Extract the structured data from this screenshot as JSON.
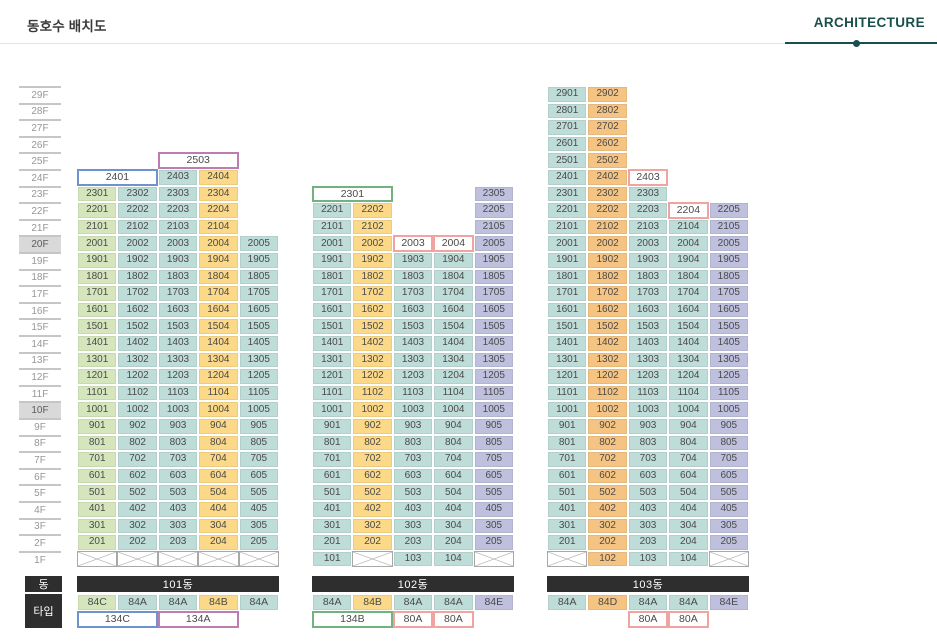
{
  "header": {
    "title": "동호수 배치도",
    "brand": "ARCHITECTURE"
  },
  "legend": {
    "dong_label": "동",
    "type_label": "타입"
  },
  "floor_axis": {
    "labels": [
      "29F",
      "28F",
      "27F",
      "26F",
      "25F",
      "24F",
      "23F",
      "22F",
      "21F",
      "20F",
      "19F",
      "18F",
      "17F",
      "16F",
      "15F",
      "14F",
      "13F",
      "12F",
      "11F",
      "10F",
      "9F",
      "8F",
      "7F",
      "6F",
      "5F",
      "4F",
      "3F",
      "2F",
      "1F"
    ],
    "highlighted": [
      "20F",
      "10F"
    ]
  },
  "colors": {
    "green": "#d5e6bd",
    "teal": "#bedcd8",
    "yellow": "#fbd988",
    "orange": "#f5c483",
    "purple": "#bfc0dd",
    "outline_blue": "#6e92cc",
    "outline_purple": "#bc7db0",
    "outline_green": "#72b27e",
    "outline_pink": "#f0a3a0",
    "accent_teal": "#1b4f4c",
    "header_black": "#2e2e2e",
    "floor_highlight": "#d9d9d9"
  },
  "buildings": [
    {
      "name": "101동",
      "col_styles": [
        "green",
        "teal",
        "teal",
        "yellow",
        "teal"
      ],
      "floors": [
        {
          "f": 25,
          "cells": [
            {
              "c": 3,
              "span": 2,
              "t": "2503",
              "style": "outline-purple"
            }
          ]
        },
        {
          "f": 24,
          "cells": [
            {
              "c": 1,
              "span": 2,
              "t": "2401",
              "style": "outline-blue"
            },
            {
              "c": 3,
              "t": "2403"
            },
            {
              "c": 4,
              "t": "2404"
            }
          ]
        },
        {
          "f": 23,
          "cells": [
            "2301",
            "2302",
            "2303",
            "2304"
          ]
        },
        {
          "f": 22,
          "cells": [
            "2201",
            "2202",
            "2203",
            "2204"
          ]
        },
        {
          "f": 21,
          "cells": [
            "2101",
            "2102",
            "2103",
            "2104"
          ]
        },
        {
          "f": 20,
          "cells": [
            "2001",
            "2002",
            "2003",
            "2004",
            "2005"
          ]
        },
        {
          "f": 19,
          "cells": [
            "1901",
            "1902",
            "1903",
            "1904",
            "1905"
          ]
        },
        {
          "f": 18,
          "cells": [
            "1801",
            "1802",
            "1803",
            "1804",
            "1805"
          ]
        },
        {
          "f": 17,
          "cells": [
            "1701",
            "1702",
            "1703",
            "1704",
            "1705"
          ]
        },
        {
          "f": 16,
          "cells": [
            "1601",
            "1602",
            "1603",
            "1604",
            "1605"
          ]
        },
        {
          "f": 15,
          "cells": [
            "1501",
            "1502",
            "1503",
            "1504",
            "1505"
          ]
        },
        {
          "f": 14,
          "cells": [
            "1401",
            "1402",
            "1403",
            "1404",
            "1405"
          ]
        },
        {
          "f": 13,
          "cells": [
            "1301",
            "1302",
            "1303",
            "1304",
            "1305"
          ]
        },
        {
          "f": 12,
          "cells": [
            "1201",
            "1202",
            "1203",
            "1204",
            "1205"
          ]
        },
        {
          "f": 11,
          "cells": [
            "1101",
            "1102",
            "1103",
            "1104",
            "1105"
          ]
        },
        {
          "f": 10,
          "cells": [
            "1001",
            "1002",
            "1003",
            "1004",
            "1005"
          ]
        },
        {
          "f": 9,
          "cells": [
            "901",
            "902",
            "903",
            "904",
            "905"
          ]
        },
        {
          "f": 8,
          "cells": [
            "801",
            "802",
            "803",
            "804",
            "805"
          ]
        },
        {
          "f": 7,
          "cells": [
            "701",
            "702",
            "703",
            "704",
            "705"
          ]
        },
        {
          "f": 6,
          "cells": [
            "601",
            "602",
            "603",
            "604",
            "605"
          ]
        },
        {
          "f": 5,
          "cells": [
            "501",
            "502",
            "503",
            "504",
            "505"
          ]
        },
        {
          "f": 4,
          "cells": [
            "401",
            "402",
            "403",
            "404",
            "405"
          ]
        },
        {
          "f": 3,
          "cells": [
            "301",
            "302",
            "303",
            "304",
            "305"
          ]
        },
        {
          "f": 2,
          "cells": [
            "201",
            "202",
            "203",
            "204",
            "205"
          ]
        },
        {
          "f": 1,
          "cells": [
            {
              "x": true
            },
            {
              "x": true
            },
            {
              "x": true
            },
            {
              "x": true
            },
            {
              "x": true
            }
          ]
        }
      ],
      "types_row1": [
        "84C",
        "84A",
        "84A",
        "84B",
        "84A"
      ],
      "types_row2": [
        {
          "span": 2,
          "t": "134C",
          "style": "outline-blue"
        },
        {
          "span": 2,
          "t": "134A",
          "style": "outline-purple"
        }
      ]
    },
    {
      "name": "102동",
      "col_styles": [
        "teal",
        "yellow",
        "teal",
        "teal",
        "purple"
      ],
      "floors": [
        {
          "f": 23,
          "cells": [
            {
              "c": 1,
              "span": 2,
              "t": "2301",
              "style": "outline-green"
            },
            {
              "c": 5,
              "t": "2305"
            }
          ]
        },
        {
          "f": 22,
          "cells": [
            "2201",
            "2202",
            {
              "c": 5,
              "t": "2205"
            }
          ]
        },
        {
          "f": 21,
          "cells": [
            "2101",
            "2102",
            {
              "c": 5,
              "t": "2105"
            }
          ]
        },
        {
          "f": 20,
          "cells": [
            "2001",
            "2002",
            {
              "t": "2003",
              "style": "outline-pink"
            },
            {
              "t": "2004",
              "style": "outline-pink"
            },
            "2005"
          ]
        },
        {
          "f": 19,
          "cells": [
            "1901",
            "1902",
            "1903",
            "1904",
            "1905"
          ]
        },
        {
          "f": 18,
          "cells": [
            "1801",
            "1802",
            "1803",
            "1804",
            "1805"
          ]
        },
        {
          "f": 17,
          "cells": [
            "1701",
            "1702",
            "1703",
            "1704",
            "1705"
          ]
        },
        {
          "f": 16,
          "cells": [
            "1601",
            "1602",
            "1603",
            "1604",
            "1605"
          ]
        },
        {
          "f": 15,
          "cells": [
            "1501",
            "1502",
            "1503",
            "1504",
            "1505"
          ]
        },
        {
          "f": 14,
          "cells": [
            "1401",
            "1402",
            "1403",
            "1404",
            "1405"
          ]
        },
        {
          "f": 13,
          "cells": [
            "1301",
            "1302",
            "1303",
            "1304",
            "1305"
          ]
        },
        {
          "f": 12,
          "cells": [
            "1201",
            "1202",
            "1203",
            "1204",
            "1205"
          ]
        },
        {
          "f": 11,
          "cells": [
            "1101",
            "1102",
            "1103",
            "1104",
            "1105"
          ]
        },
        {
          "f": 10,
          "cells": [
            "1001",
            "1002",
            "1003",
            "1004",
            "1005"
          ]
        },
        {
          "f": 9,
          "cells": [
            "901",
            "902",
            "903",
            "904",
            "905"
          ]
        },
        {
          "f": 8,
          "cells": [
            "801",
            "802",
            "803",
            "804",
            "805"
          ]
        },
        {
          "f": 7,
          "cells": [
            "701",
            "702",
            "703",
            "704",
            "705"
          ]
        },
        {
          "f": 6,
          "cells": [
            "601",
            "602",
            "603",
            "604",
            "605"
          ]
        },
        {
          "f": 5,
          "cells": [
            "501",
            "502",
            "503",
            "504",
            "505"
          ]
        },
        {
          "f": 4,
          "cells": [
            "401",
            "402",
            "403",
            "404",
            "405"
          ]
        },
        {
          "f": 3,
          "cells": [
            "301",
            "302",
            "303",
            "304",
            "305"
          ]
        },
        {
          "f": 2,
          "cells": [
            "201",
            "202",
            "203",
            "204",
            "205"
          ]
        },
        {
          "f": 1,
          "cells": [
            "101",
            {
              "x": true
            },
            "103",
            "104",
            {
              "x": true
            }
          ]
        }
      ],
      "types_row1": [
        "84A",
        "84B",
        "84A",
        "84A",
        "84E"
      ],
      "types_row2": [
        {
          "span": 2,
          "t": "134B",
          "style": "outline-green"
        },
        {
          "t": "80A",
          "style": "outline-pink"
        },
        {
          "t": "80A",
          "style": "outline-pink"
        }
      ]
    },
    {
      "name": "103동",
      "col_styles": [
        "teal",
        "orange",
        "teal",
        "teal",
        "purple"
      ],
      "floors": [
        {
          "f": 29,
          "cells": [
            "2901",
            "2902"
          ]
        },
        {
          "f": 28,
          "cells": [
            "2801",
            "2802"
          ]
        },
        {
          "f": 27,
          "cells": [
            "2701",
            "2702"
          ]
        },
        {
          "f": 26,
          "cells": [
            "2601",
            "2602"
          ]
        },
        {
          "f": 25,
          "cells": [
            "2501",
            "2502"
          ]
        },
        {
          "f": 24,
          "cells": [
            "2401",
            "2402",
            {
              "t": "2403",
              "style": "outline-pink"
            }
          ]
        },
        {
          "f": 23,
          "cells": [
            "2301",
            "2302",
            "2303"
          ]
        },
        {
          "f": 22,
          "cells": [
            "2201",
            "2202",
            "2203",
            {
              "t": "2204",
              "style": "outline-pink"
            },
            "2205"
          ]
        },
        {
          "f": 21,
          "cells": [
            "2101",
            "2102",
            "2103",
            "2104",
            "2105"
          ]
        },
        {
          "f": 20,
          "cells": [
            "2001",
            "2002",
            "2003",
            "2004",
            "2005"
          ]
        },
        {
          "f": 19,
          "cells": [
            "1901",
            "1902",
            "1903",
            "1904",
            "1905"
          ]
        },
        {
          "f": 18,
          "cells": [
            "1801",
            "1802",
            "1803",
            "1804",
            "1805"
          ]
        },
        {
          "f": 17,
          "cells": [
            "1701",
            "1702",
            "1703",
            "1704",
            "1705"
          ]
        },
        {
          "f": 16,
          "cells": [
            "1601",
            "1602",
            "1603",
            "1604",
            "1605"
          ]
        },
        {
          "f": 15,
          "cells": [
            "1501",
            "1502",
            "1503",
            "1504",
            "1505"
          ]
        },
        {
          "f": 14,
          "cells": [
            "1401",
            "1402",
            "1403",
            "1404",
            "1405"
          ]
        },
        {
          "f": 13,
          "cells": [
            "1301",
            "1302",
            "1303",
            "1304",
            "1305"
          ]
        },
        {
          "f": 12,
          "cells": [
            "1201",
            "1202",
            "1203",
            "1204",
            "1205"
          ]
        },
        {
          "f": 11,
          "cells": [
            "1101",
            "1102",
            "1103",
            "1104",
            "1105"
          ]
        },
        {
          "f": 10,
          "cells": [
            "1001",
            "1002",
            "1003",
            "1004",
            "1005"
          ]
        },
        {
          "f": 9,
          "cells": [
            "901",
            "902",
            "903",
            "904",
            "905"
          ]
        },
        {
          "f": 8,
          "cells": [
            "801",
            "802",
            "803",
            "804",
            "805"
          ]
        },
        {
          "f": 7,
          "cells": [
            "701",
            "702",
            "703",
            "704",
            "705"
          ]
        },
        {
          "f": 6,
          "cells": [
            "601",
            "602",
            "603",
            "604",
            "605"
          ]
        },
        {
          "f": 5,
          "cells": [
            "501",
            "502",
            "503",
            "504",
            "505"
          ]
        },
        {
          "f": 4,
          "cells": [
            "401",
            "402",
            "403",
            "404",
            "405"
          ]
        },
        {
          "f": 3,
          "cells": [
            "301",
            "302",
            "303",
            "304",
            "305"
          ]
        },
        {
          "f": 2,
          "cells": [
            "201",
            "202",
            "203",
            "204",
            "205"
          ]
        },
        {
          "f": 1,
          "cells": [
            {
              "x": true
            },
            "102",
            "103",
            "104",
            {
              "x": true
            }
          ]
        }
      ],
      "types_row1": [
        "84A",
        "84D",
        "84A",
        "84A",
        "84E"
      ],
      "types_row2": [
        {
          "c": 3,
          "t": "80A",
          "style": "outline-pink"
        },
        {
          "t": "80A",
          "style": "outline-pink"
        }
      ]
    }
  ]
}
